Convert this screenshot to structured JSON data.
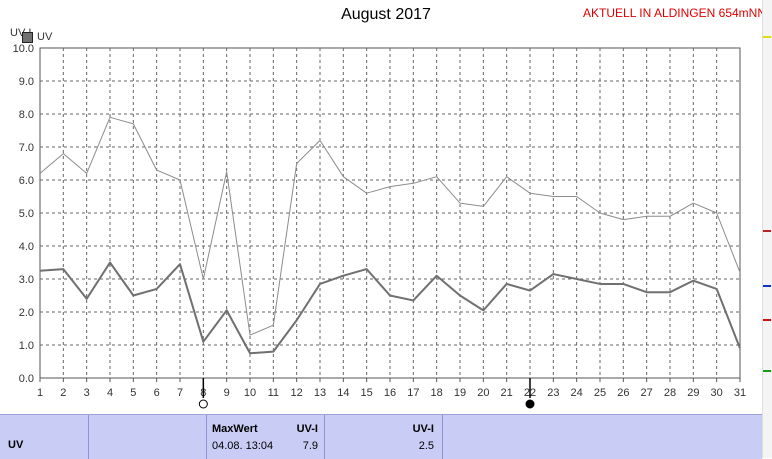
{
  "header": {
    "title": "August 2017",
    "banner": "AKTUELL IN ALDINGEN 654mNN",
    "unit_label": "UV-I",
    "legend_label": "UV"
  },
  "chart_data": {
    "type": "line",
    "title": "August 2017",
    "ylabel": "UV-I",
    "xlabel": "",
    "ylim": [
      0,
      10
    ],
    "yticks": [
      "0.0",
      "1.0",
      "2.0",
      "3.0",
      "4.0",
      "5.0",
      "6.0",
      "7.0",
      "8.0",
      "9.0",
      "10.0"
    ],
    "x": [
      1,
      2,
      3,
      4,
      5,
      6,
      7,
      8,
      9,
      10,
      11,
      12,
      13,
      14,
      15,
      16,
      17,
      18,
      19,
      20,
      21,
      22,
      23,
      24,
      25,
      26,
      27,
      28,
      29,
      30,
      31
    ],
    "grid": true,
    "series": [
      {
        "name": "UV",
        "color": "#707070",
        "values": [
          3.25,
          3.3,
          2.4,
          3.5,
          2.5,
          2.7,
          3.45,
          1.1,
          2.05,
          0.75,
          0.8,
          1.75,
          2.85,
          3.1,
          3.3,
          2.5,
          2.35,
          3.1,
          2.5,
          2.05,
          2.85,
          2.65,
          3.15,
          3.0,
          2.85,
          2.85,
          2.6,
          2.6,
          2.95,
          2.7,
          0.9
        ]
      },
      {
        "color": "#8c8c8c",
        "values": [
          6.2,
          6.8,
          6.2,
          7.9,
          7.7,
          6.3,
          6.0,
          3.0,
          6.25,
          1.3,
          1.6,
          6.5,
          7.2,
          6.1,
          5.6,
          5.8,
          5.9,
          6.1,
          5.3,
          5.2,
          6.1,
          5.6,
          5.5,
          5.5,
          5.0,
          4.8,
          4.9,
          4.9,
          5.3,
          5.0,
          3.2
        ]
      }
    ],
    "moon_markers": [
      {
        "day": 8,
        "icon": "full-moon-icon"
      },
      {
        "day": 22,
        "icon": "new-moon-icon"
      }
    ]
  },
  "footer": {
    "row_label": "UV",
    "max_header": "MaxWert",
    "max_unit": "UV-I",
    "max_date": "04.08. 13:04",
    "max_value": "7.9",
    "avg_unit": "UV-I",
    "avg_value": "2.5"
  }
}
